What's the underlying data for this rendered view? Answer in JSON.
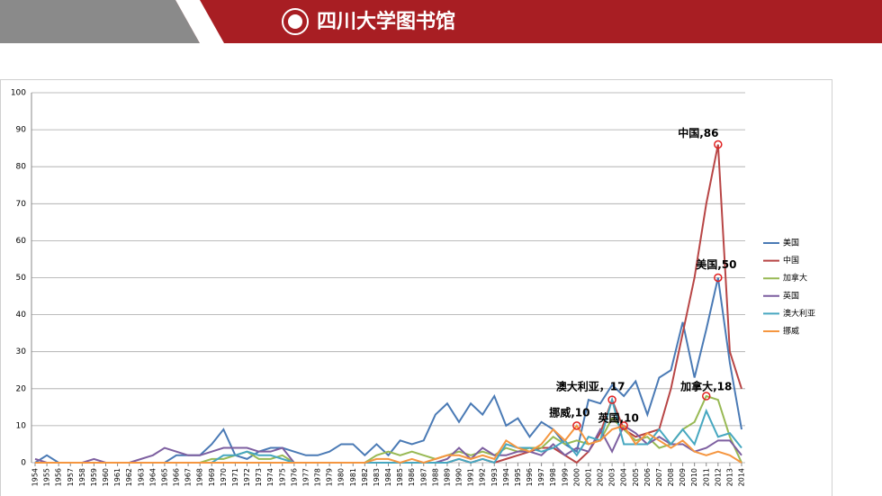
{
  "header": {
    "title": "四川大学图书馆"
  },
  "chart_data": {
    "type": "line",
    "categories": [
      "1954",
      "1955",
      "1956",
      "1957",
      "1958",
      "1959",
      "1960",
      "1961",
      "1962",
      "1963",
      "1964",
      "1965",
      "1966",
      "1967",
      "1968",
      "1969",
      "1970",
      "1971",
      "1972",
      "1973",
      "1974",
      "1975",
      "1976",
      "1977",
      "1978",
      "1979",
      "1980",
      "1981",
      "1982",
      "1983",
      "1984",
      "1985",
      "1986",
      "1987",
      "1988",
      "1989",
      "1990",
      "1991",
      "1992",
      "1993",
      "1994",
      "1995",
      "1996",
      "1997",
      "1998",
      "1999",
      "2000",
      "2001",
      "2002",
      "2003",
      "2004",
      "2005",
      "2006",
      "2007",
      "2008",
      "2009",
      "2010",
      "2011",
      "2012",
      "2013",
      "2014"
    ],
    "series": [
      {
        "name": "美国",
        "color": "#4a7ab5",
        "values": [
          0,
          2,
          0,
          0,
          0,
          0,
          0,
          0,
          0,
          0,
          0,
          0,
          2,
          2,
          2,
          5,
          9,
          2,
          1,
          3,
          4,
          4,
          3,
          2,
          2,
          3,
          5,
          5,
          2,
          5,
          2,
          6,
          5,
          6,
          13,
          16,
          11,
          16,
          13,
          18,
          10,
          12,
          7,
          11,
          9,
          5,
          3,
          17,
          16,
          21,
          18,
          22,
          13,
          23,
          25,
          38,
          23,
          36,
          50,
          27,
          9
        ]
      },
      {
        "name": "中国",
        "color": "#b84545",
        "values": [
          0,
          0,
          0,
          0,
          0,
          0,
          0,
          0,
          0,
          0,
          0,
          0,
          0,
          0,
          0,
          0,
          0,
          0,
          0,
          0,
          0,
          0,
          0,
          0,
          0,
          0,
          0,
          0,
          0,
          0,
          0,
          0,
          0,
          0,
          0,
          0,
          1,
          0,
          1,
          0,
          1,
          2,
          3,
          4,
          4,
          2,
          0,
          3,
          8,
          17,
          9,
          7,
          8,
          9,
          20,
          35,
          50,
          70,
          86,
          30,
          20
        ]
      },
      {
        "name": "加拿大",
        "color": "#98b954",
        "values": [
          0,
          0,
          0,
          0,
          0,
          0,
          0,
          0,
          0,
          0,
          0,
          0,
          0,
          0,
          0,
          1,
          1,
          2,
          3,
          1,
          1,
          2,
          0,
          0,
          0,
          0,
          0,
          0,
          0,
          2,
          3,
          2,
          3,
          2,
          1,
          2,
          3,
          2,
          3,
          2,
          4,
          3,
          4,
          4,
          7,
          5,
          6,
          5,
          6,
          12,
          9,
          6,
          7,
          4,
          5,
          9,
          11,
          18,
          17,
          7,
          0
        ]
      },
      {
        "name": "英国",
        "color": "#7d5fa0",
        "values": [
          1,
          0,
          0,
          0,
          0,
          1,
          0,
          0,
          0,
          1,
          2,
          4,
          3,
          2,
          2,
          3,
          4,
          4,
          4,
          3,
          3,
          4,
          0,
          0,
          0,
          0,
          0,
          0,
          0,
          0,
          0,
          0,
          0,
          0,
          0,
          1,
          4,
          1,
          4,
          2,
          2,
          3,
          3,
          2,
          5,
          2,
          4,
          3,
          9,
          3,
          10,
          8,
          5,
          7,
          5,
          5,
          3,
          4,
          6,
          6,
          2
        ]
      },
      {
        "name": "澳大利亚",
        "color": "#46a7c0",
        "values": [
          0,
          0,
          0,
          0,
          0,
          0,
          0,
          0,
          0,
          0,
          0,
          0,
          0,
          0,
          0,
          0,
          2,
          2,
          3,
          2,
          2,
          1,
          0,
          0,
          0,
          0,
          0,
          0,
          0,
          0,
          0,
          0,
          0,
          0,
          0,
          0,
          1,
          0,
          1,
          0,
          5,
          4,
          4,
          3,
          4,
          6,
          2,
          7,
          6,
          17,
          5,
          5,
          5,
          9,
          5,
          9,
          5,
          14,
          7,
          8,
          4
        ]
      },
      {
        "name": "挪威",
        "color": "#f59640",
        "values": [
          0,
          0,
          0,
          0,
          0,
          0,
          0,
          0,
          0,
          0,
          0,
          0,
          0,
          0,
          0,
          0,
          0,
          0,
          0,
          0,
          0,
          0,
          0,
          0,
          0,
          0,
          0,
          0,
          0,
          1,
          1,
          0,
          1,
          0,
          1,
          2,
          2,
          1,
          2,
          1,
          6,
          4,
          3,
          5,
          9,
          6,
          10,
          5,
          6,
          9,
          10,
          5,
          8,
          6,
          4,
          6,
          3,
          2,
          3,
          2,
          0
        ]
      }
    ],
    "ylim": [
      0,
      100
    ],
    "yticks": [
      0,
      10,
      20,
      30,
      40,
      50,
      60,
      70,
      80,
      90,
      100
    ],
    "grid": true,
    "annotations": [
      {
        "text": "中国,86",
        "series": "中国",
        "x": "2012"
      },
      {
        "text": "美国,50",
        "series": "美国",
        "x": "2012"
      },
      {
        "text": "澳大利亚，17",
        "series": "澳大利亚",
        "x": "2003"
      },
      {
        "text": "挪威,10",
        "series": "挪威",
        "x": "2000"
      },
      {
        "text": "英国,10",
        "series": "英国",
        "x": "2004"
      },
      {
        "text": "加拿大,18",
        "series": "加拿大",
        "x": "2011"
      }
    ]
  }
}
